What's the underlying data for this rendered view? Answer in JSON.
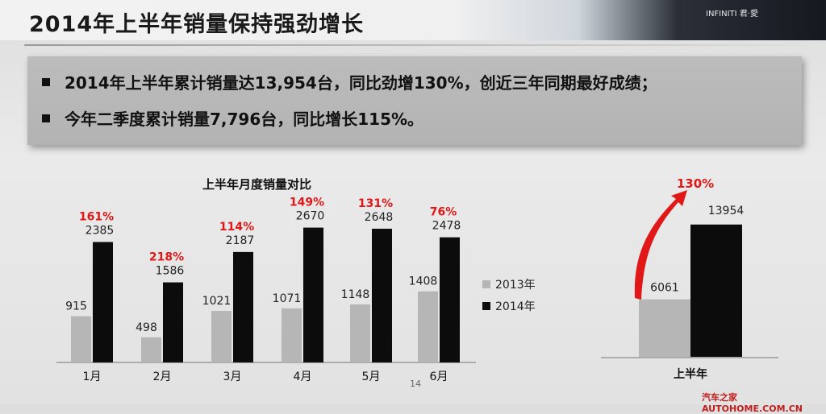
{
  "header": {
    "title": "2014年上半年销量保持强劲增长",
    "brand": "INFINITI 君·愛"
  },
  "summary": {
    "items": [
      "2014年上半年累计销量达13,954台，同比劲增130%，创近三年同期最好成绩；",
      "今年二季度累计销量7,796台，同比增长115%。"
    ]
  },
  "colors": {
    "y2013": "#b6b6b6",
    "y2014": "#0c0c0c",
    "growth": "#e01818"
  },
  "chart_data": [
    {
      "type": "bar",
      "title": "上半年月度销量对比",
      "categories": [
        "1月",
        "2月",
        "3月",
        "4月",
        "5月",
        "6月"
      ],
      "series": [
        {
          "name": "2013年",
          "values": [
            915,
            498,
            1021,
            1071,
            1148,
            1408
          ]
        },
        {
          "name": "2014年",
          "values": [
            2385,
            1586,
            2187,
            2670,
            2648,
            2478
          ]
        }
      ],
      "growth_labels": [
        "161%",
        "218%",
        "114%",
        "149%",
        "131%",
        "76%"
      ],
      "legend": "right"
    },
    {
      "type": "bar",
      "title": "",
      "categories": [
        "上半年"
      ],
      "series": [
        {
          "name": "2013年",
          "values": [
            6061
          ]
        },
        {
          "name": "2014年",
          "values": [
            13954
          ]
        }
      ],
      "growth_labels": [
        "130%"
      ]
    }
  ],
  "footer": {
    "page_number": "14",
    "watermark": "汽车之家 AUTOHOME.COM.CN"
  }
}
